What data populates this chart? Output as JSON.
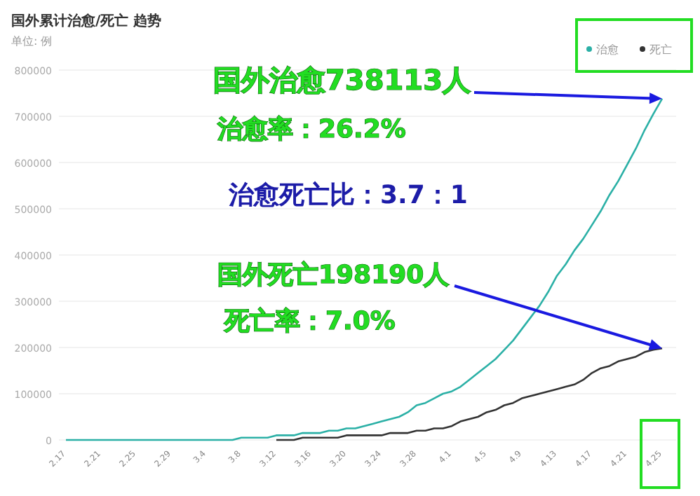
{
  "chart_data": {
    "type": "line",
    "title": "国外累计治愈/死亡 趋势",
    "ylabel": "单位: 例",
    "categories": [
      "2.17",
      null,
      null,
      null,
      "2.21",
      null,
      null,
      null,
      "2.25",
      null,
      null,
      null,
      "2.29",
      null,
      null,
      null,
      "3.4",
      null,
      null,
      null,
      "3.8",
      null,
      null,
      null,
      "3.12",
      null,
      null,
      null,
      "3.16",
      null,
      null,
      null,
      "3.20",
      null,
      null,
      null,
      "3.24",
      null,
      null,
      null,
      "3.28",
      null,
      null,
      null,
      "4.1",
      null,
      null,
      null,
      "4.5",
      null,
      null,
      null,
      "4.9",
      null,
      null,
      null,
      "4.13",
      null,
      null,
      null,
      "4.17",
      null,
      null,
      null,
      "4.21",
      null,
      null,
      null,
      "4.25"
    ],
    "series": [
      {
        "name": "死亡",
        "color": "#333333",
        "values": [
          null,
          null,
          null,
          null,
          null,
          null,
          null,
          null,
          null,
          null,
          null,
          null,
          null,
          null,
          null,
          null,
          null,
          null,
          null,
          null,
          null,
          null,
          null,
          null,
          0,
          0,
          0,
          5000,
          5000,
          5000,
          5000,
          5000,
          10000,
          10000,
          10000,
          10000,
          10000,
          15000,
          15000,
          15000,
          20000,
          20000,
          25000,
          25000,
          30000,
          40000,
          45000,
          50000,
          60000,
          65000,
          75000,
          80000,
          90000,
          95000,
          100000,
          105000,
          110000,
          115000,
          120000,
          130000,
          145000,
          155000,
          160000,
          170000,
          175000,
          180000,
          190000,
          195000,
          198190
        ]
      },
      {
        "name": "治愈",
        "color": "#2bb0a6",
        "values": [
          0,
          0,
          0,
          0,
          0,
          0,
          0,
          0,
          0,
          0,
          0,
          0,
          0,
          0,
          0,
          0,
          0,
          0,
          0,
          0,
          5000,
          5000,
          5000,
          5000,
          10000,
          10000,
          10000,
          15000,
          15000,
          15000,
          20000,
          20000,
          25000,
          25000,
          30000,
          35000,
          40000,
          45000,
          50000,
          60000,
          75000,
          80000,
          90000,
          100000,
          105000,
          115000,
          130000,
          145000,
          160000,
          175000,
          195000,
          215000,
          240000,
          265000,
          290000,
          320000,
          355000,
          380000,
          410000,
          435000,
          465000,
          495000,
          530000,
          560000,
          595000,
          630000,
          670000,
          705000,
          738113
        ]
      }
    ],
    "ylim": [
      0,
      800000
    ],
    "yticks": [
      0,
      100000,
      200000,
      300000,
      400000,
      500000,
      600000,
      700000,
      800000
    ],
    "grid": "y",
    "legend": "top right",
    "marker": "none",
    "line_style": "solid",
    "annotations": [
      {
        "text": "国外治愈738113人",
        "x": "4.25",
        "y": 738113
      },
      "治愈率：26.2%",
      "治愈死亡比：3.7：1",
      {
        "text": "国外死亡198190人",
        "x": "4.25",
        "y": 198190
      },
      "死亡率：7.0%"
    ]
  }
}
